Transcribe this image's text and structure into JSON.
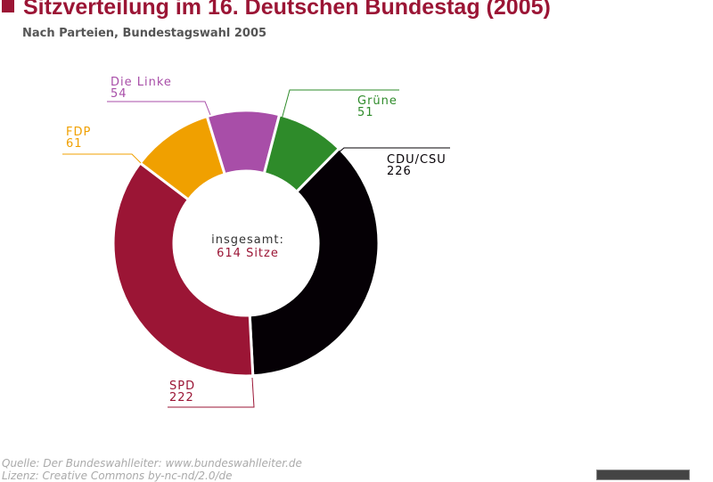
{
  "chart_data": {
    "type": "pie",
    "title": "Sitzverteilung im 16. Deutschen Bundestag (2005)",
    "subtitle": "Nach Parteien, Bundestagswahl 2005",
    "center_label": "insgesamt:",
    "center_value": "614 Sitze",
    "categories": [
      "CDU/CSU",
      "SPD",
      "FDP",
      "Die Linke",
      "Grüne"
    ],
    "values": [
      226,
      222,
      61,
      54,
      51
    ],
    "colors": [
      "#050005",
      "#9b1535",
      "#f0a000",
      "#a84ea8",
      "#2e8b2a"
    ],
    "donut": true
  },
  "footer": {
    "source": "Quelle: Der Bundeswahlleiter: www.bundeswahlleiter.de",
    "license": "Lizenz: Creative Commons by-nc-nd/2.0/de"
  }
}
